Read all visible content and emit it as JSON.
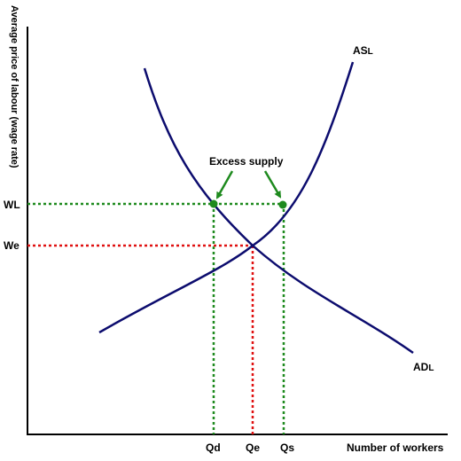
{
  "diagram": {
    "y_axis_label": "Average price of labour (wage rate)",
    "x_axis_label": "Number of workers",
    "y_ticks": {
      "wl": "WL",
      "we": "We"
    },
    "x_ticks": {
      "qd": "Qd",
      "qe": "Qe",
      "qs": "Qs"
    },
    "supply_curve": {
      "label_main": "AS",
      "label_sub": "L"
    },
    "demand_curve": {
      "label_main": "AD",
      "label_sub": "L"
    },
    "annotation": "Excess supply",
    "colors": {
      "curve": "#0c0c6e",
      "green": "#1e8a1e",
      "red": "#e01010",
      "axis": "#000000"
    }
  }
}
